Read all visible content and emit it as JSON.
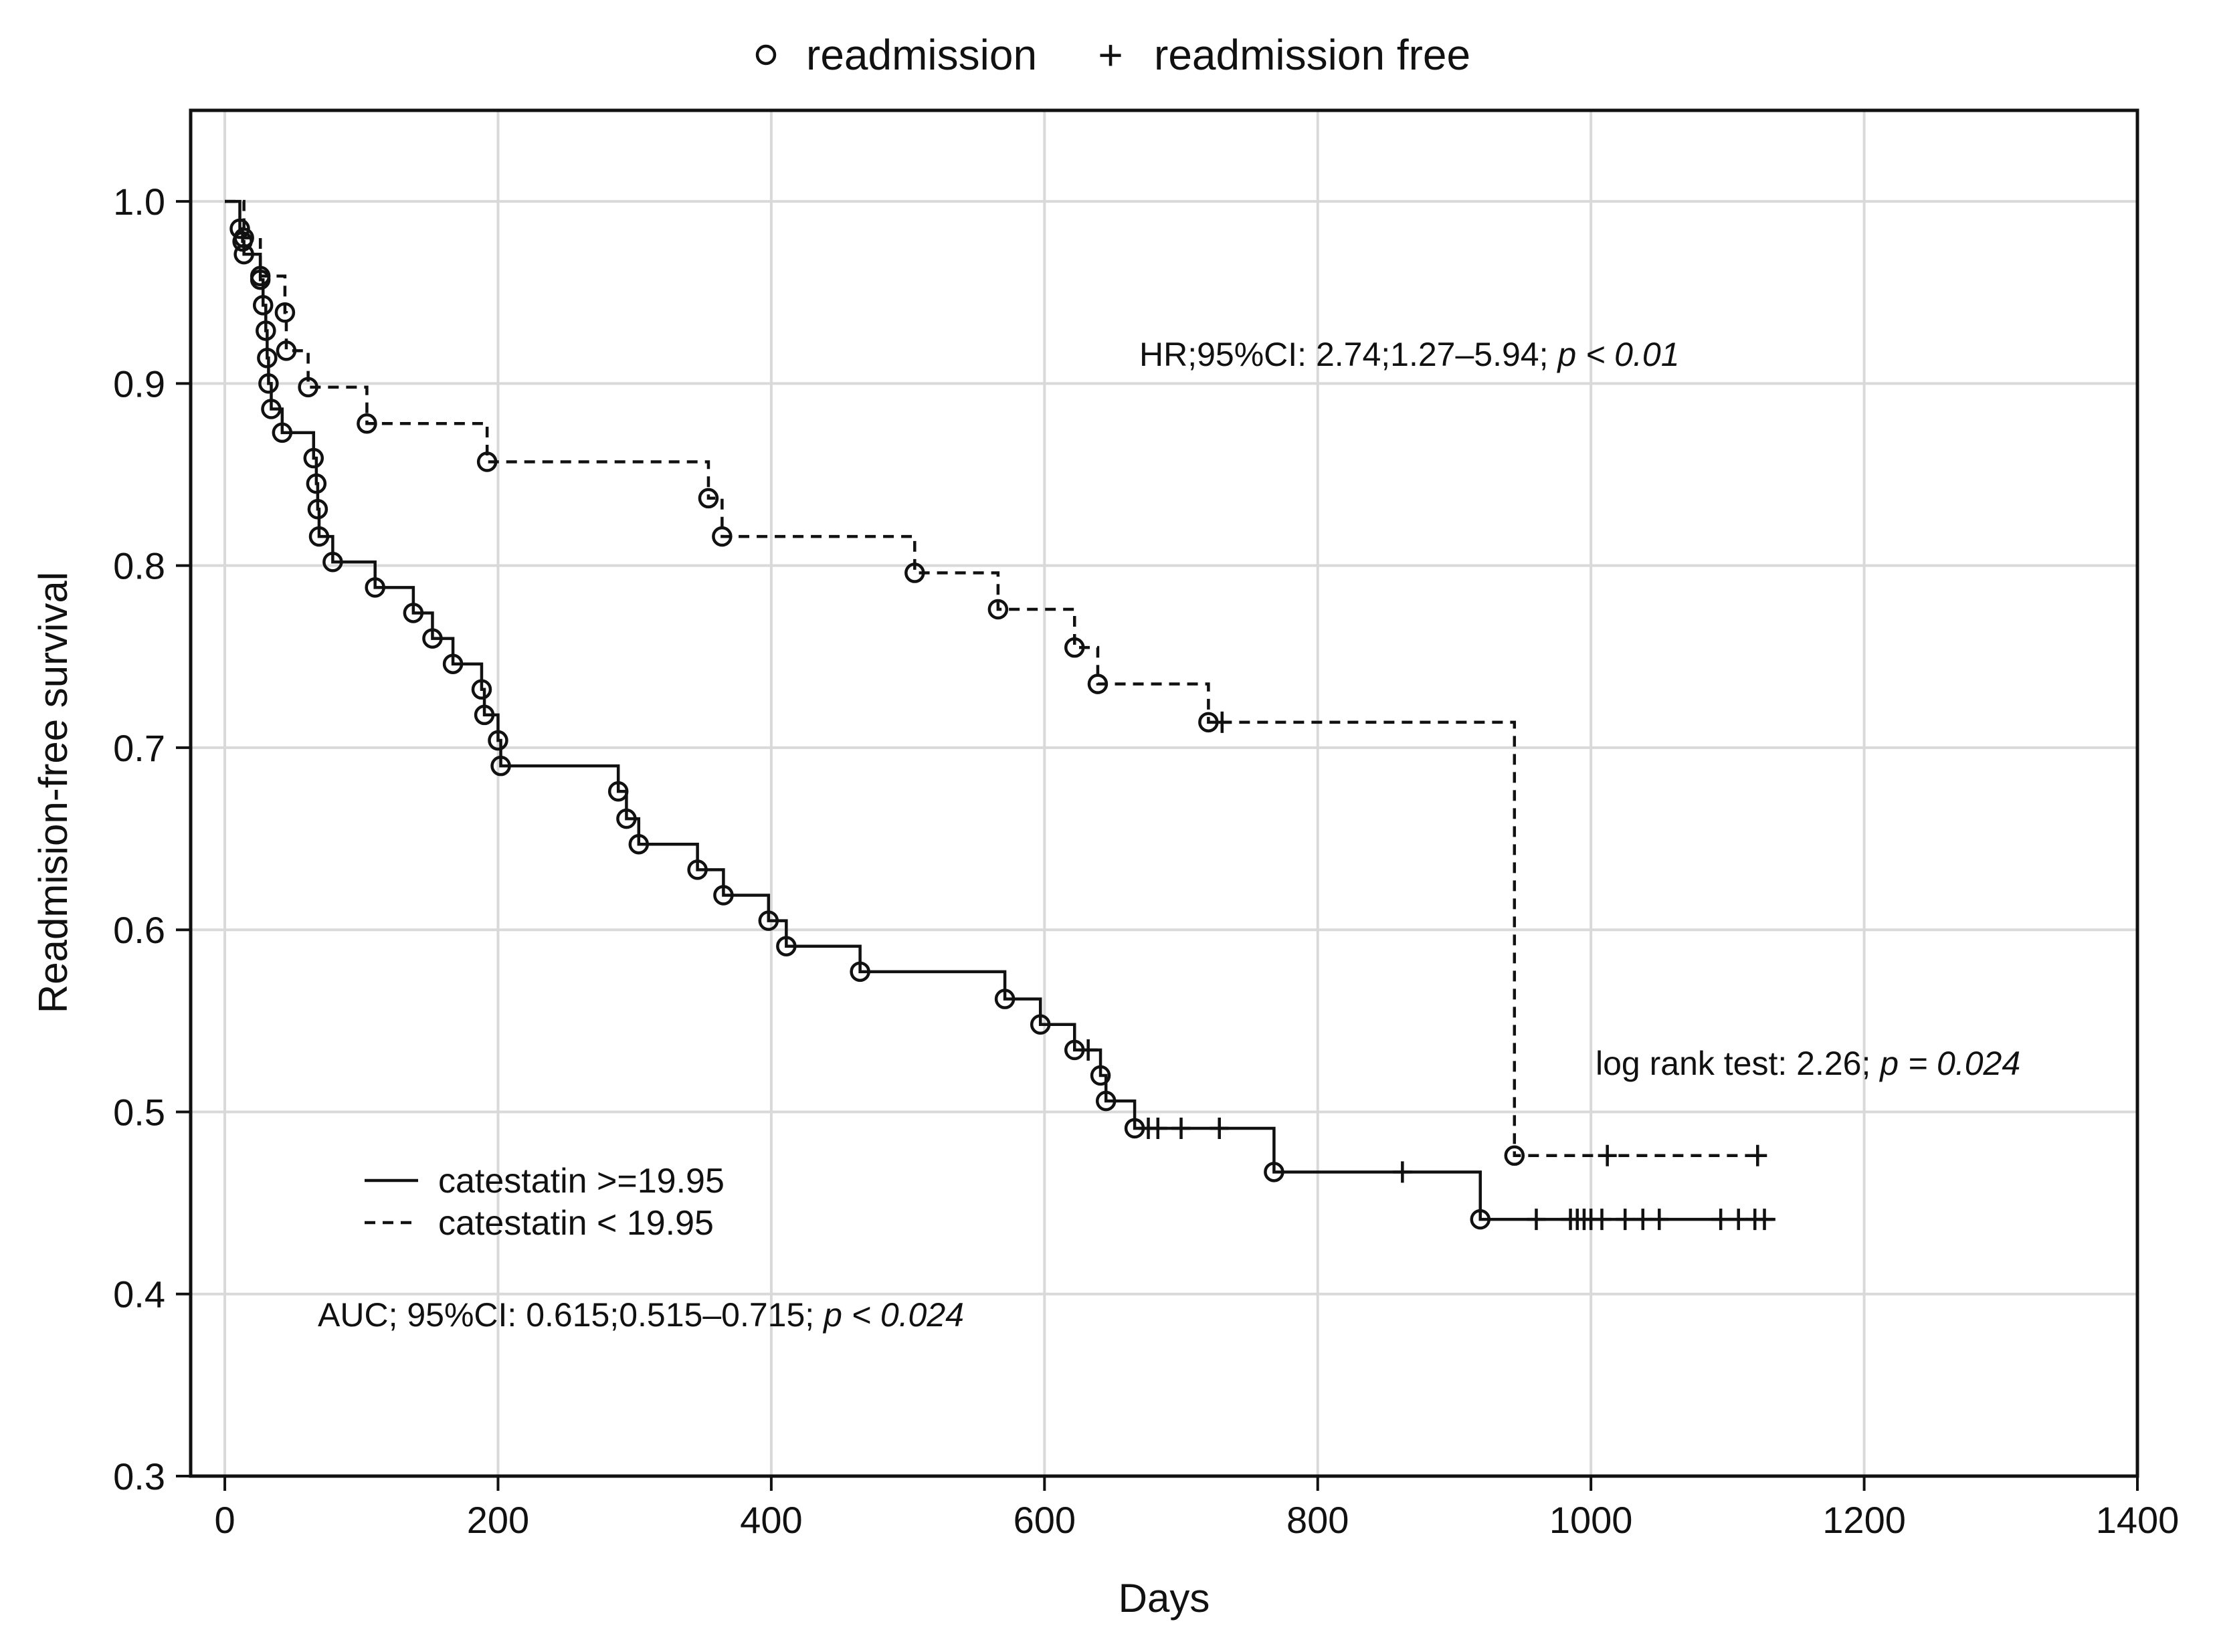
{
  "chart_data": {
    "type": "line",
    "subtype": "kaplan-meier",
    "xlabel": "Days",
    "ylabel": "Readmision-free survival",
    "xlim": [
      -25,
      1400
    ],
    "ylim": [
      0.3,
      1.05
    ],
    "xticks": [
      0,
      200,
      400,
      600,
      800,
      1000,
      1200,
      1400
    ],
    "xtick_labels": [
      "0",
      "200",
      "400",
      "600",
      "800",
      "1000",
      "1200",
      "1400"
    ],
    "yticks": [
      0.3,
      0.4,
      0.5,
      0.6,
      0.7,
      0.8,
      0.9,
      1.0
    ],
    "ytick_labels": [
      "0.3",
      "0.4",
      "0.5",
      "0.6",
      "0.7",
      "0.8",
      "0.9",
      "1.0"
    ],
    "grid": true,
    "marker_legend": {
      "event_symbol": "○",
      "event_label": "readmission",
      "censor_symbol": "+",
      "censor_label": "readmission free"
    },
    "series": [
      {
        "name": "catestatin >=19.95",
        "line_style": "solid",
        "steps": [
          [
            0,
            1.0
          ],
          [
            11,
            0.985
          ],
          [
            13,
            0.978
          ],
          [
            14,
            0.971
          ],
          [
            26,
            0.957
          ],
          [
            28,
            0.943
          ],
          [
            30,
            0.929
          ],
          [
            31,
            0.914
          ],
          [
            32,
            0.9
          ],
          [
            34,
            0.886
          ],
          [
            42,
            0.873
          ],
          [
            65,
            0.859
          ],
          [
            67,
            0.845
          ],
          [
            68,
            0.831
          ],
          [
            69,
            0.816
          ],
          [
            79,
            0.802
          ],
          [
            110,
            0.788
          ],
          [
            138,
            0.774
          ],
          [
            152,
            0.76
          ],
          [
            167,
            0.746
          ],
          [
            188,
            0.732
          ],
          [
            190,
            0.718
          ],
          [
            200,
            0.704
          ],
          [
            202,
            0.69
          ],
          [
            288,
            0.676
          ],
          [
            294,
            0.661
          ],
          [
            303,
            0.647
          ],
          [
            346,
            0.633
          ],
          [
            365,
            0.619
          ],
          [
            398,
            0.605
          ],
          [
            411,
            0.591
          ],
          [
            465,
            0.577
          ],
          [
            571,
            0.562
          ],
          [
            597,
            0.548
          ],
          [
            622,
            0.534
          ],
          [
            641,
            0.52
          ],
          [
            645,
            0.506
          ],
          [
            666,
            0.491
          ],
          [
            768,
            0.467
          ],
          [
            919,
            0.441
          ]
        ],
        "end_x": 1135,
        "events": [
          [
            11,
            0.985
          ],
          [
            13,
            0.978
          ],
          [
            14,
            0.971
          ],
          [
            26,
            0.957
          ],
          [
            28,
            0.943
          ],
          [
            30,
            0.929
          ],
          [
            31,
            0.914
          ],
          [
            32,
            0.9
          ],
          [
            34,
            0.886
          ],
          [
            42,
            0.873
          ],
          [
            65,
            0.859
          ],
          [
            67,
            0.845
          ],
          [
            68,
            0.831
          ],
          [
            69,
            0.816
          ],
          [
            79,
            0.802
          ],
          [
            110,
            0.788
          ],
          [
            138,
            0.774
          ],
          [
            152,
            0.76
          ],
          [
            167,
            0.746
          ],
          [
            188,
            0.732
          ],
          [
            190,
            0.718
          ],
          [
            200,
            0.704
          ],
          [
            202,
            0.69
          ],
          [
            288,
            0.676
          ],
          [
            294,
            0.661
          ],
          [
            303,
            0.647
          ],
          [
            346,
            0.633
          ],
          [
            365,
            0.619
          ],
          [
            398,
            0.605
          ],
          [
            411,
            0.591
          ],
          [
            465,
            0.577
          ],
          [
            571,
            0.562
          ],
          [
            597,
            0.548
          ],
          [
            622,
            0.534
          ],
          [
            641,
            0.52
          ],
          [
            645,
            0.506
          ],
          [
            666,
            0.491
          ],
          [
            768,
            0.467
          ],
          [
            919,
            0.441
          ]
        ],
        "censored": [
          [
            632,
            0.534
          ],
          [
            676,
            0.491
          ],
          [
            683,
            0.491
          ],
          [
            700,
            0.491
          ],
          [
            728,
            0.491
          ],
          [
            862,
            0.467
          ],
          [
            960,
            0.441
          ],
          [
            985,
            0.441
          ],
          [
            990,
            0.441
          ],
          [
            995,
            0.441
          ],
          [
            1000,
            0.441
          ],
          [
            1008,
            0.441
          ],
          [
            1025,
            0.441
          ],
          [
            1038,
            0.441
          ],
          [
            1050,
            0.441
          ],
          [
            1095,
            0.441
          ],
          [
            1108,
            0.441
          ],
          [
            1120,
            0.441
          ],
          [
            1127,
            0.441
          ]
        ]
      },
      {
        "name": "catestatin < 19.95",
        "line_style": "dashed",
        "steps": [
          [
            0,
            1.0
          ],
          [
            14,
            0.98
          ],
          [
            26,
            0.959
          ],
          [
            44,
            0.939
          ],
          [
            45,
            0.918
          ],
          [
            61,
            0.898
          ],
          [
            104,
            0.878
          ],
          [
            192,
            0.857
          ],
          [
            354,
            0.837
          ],
          [
            364,
            0.816
          ],
          [
            505,
            0.796
          ],
          [
            566,
            0.776
          ],
          [
            622,
            0.755
          ],
          [
            639,
            0.735
          ],
          [
            720,
            0.714
          ],
          [
            944,
            0.476
          ]
        ],
        "end_x": 1122,
        "events": [
          [
            14,
            0.98
          ],
          [
            26,
            0.959
          ],
          [
            44,
            0.939
          ],
          [
            45,
            0.918
          ],
          [
            61,
            0.898
          ],
          [
            104,
            0.878
          ],
          [
            192,
            0.857
          ],
          [
            354,
            0.837
          ],
          [
            364,
            0.816
          ],
          [
            505,
            0.796
          ],
          [
            566,
            0.776
          ],
          [
            622,
            0.755
          ],
          [
            639,
            0.735
          ],
          [
            720,
            0.714
          ],
          [
            944,
            0.476
          ]
        ],
        "censored": [
          [
            730,
            0.714
          ],
          [
            1012,
            0.476
          ],
          [
            1122,
            0.476
          ]
        ]
      }
    ],
    "annotations": {
      "hr_main": "HR;95%CI: 2.74;1.27–5.94; ",
      "hr_p": "p < 0.01",
      "logrank_main": "log rank test: 2.26; ",
      "logrank_p": "p = 0.024",
      "auc_main": "AUC; 95%CI: 0.615;0.515–0.715; ",
      "auc_p": "p < 0.024"
    }
  }
}
